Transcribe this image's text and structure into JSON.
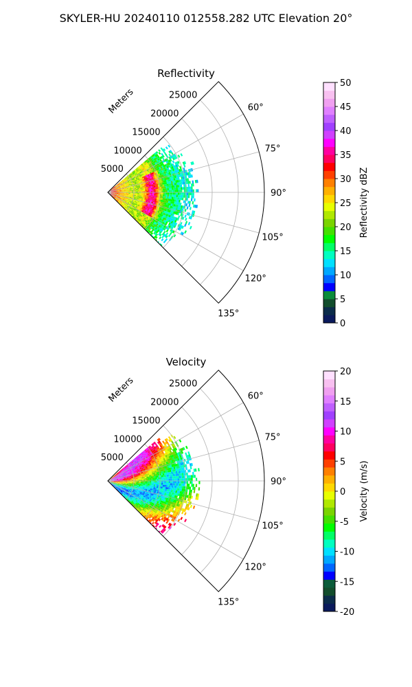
{
  "figure": {
    "suptitle": "SKYLER-HU  20240110  012558.282 UTC Elevation 20°"
  },
  "chart_data": [
    {
      "type": "heatmap",
      "projection": "polar-sector",
      "title": "Reflectivity",
      "range_label": "Meters",
      "range_ticks": [
        5000,
        10000,
        15000,
        20000,
        25000
      ],
      "range_max": 30000,
      "azimuth_range_deg": [
        45,
        135
      ],
      "azimuth_ticks_deg": [
        60,
        75,
        90,
        105,
        120,
        135
      ],
      "azimuth_tick_labels": [
        "60°",
        "75°",
        "90°",
        "105°",
        "120°",
        "135°"
      ],
      "grid": true,
      "colorbar": {
        "label": "Reflectivity dBZ",
        "min": 0,
        "max": 50,
        "ticks": [
          0,
          5,
          10,
          15,
          20,
          25,
          30,
          35,
          40,
          45,
          50
        ],
        "colors": [
          "#0a1a5c",
          "#0b2c4a",
          "#124d2c",
          "#0b8c3a",
          "#0000ff",
          "#0066ff",
          "#00a8ff",
          "#00e0ff",
          "#00ffc0",
          "#00ff66",
          "#00ff00",
          "#44e000",
          "#7ad400",
          "#b0e800",
          "#e8ff00",
          "#ffd800",
          "#ffb000",
          "#ff8000",
          "#ff4000",
          "#ff0000",
          "#ff0060",
          "#ff00a0",
          "#ff00ff",
          "#d040ff",
          "#a040ff",
          "#c060ff",
          "#e080ff",
          "#f0a0f0",
          "#f8c0f0",
          "#ffe0ff"
        ]
      }
    },
    {
      "type": "heatmap",
      "projection": "polar-sector",
      "title": "Velocity",
      "range_label": "Meters",
      "range_ticks": [
        5000,
        10000,
        15000,
        20000,
        25000
      ],
      "range_max": 30000,
      "azimuth_range_deg": [
        45,
        135
      ],
      "azimuth_ticks_deg": [
        60,
        75,
        90,
        105,
        120,
        135
      ],
      "azimuth_tick_labels": [
        "60°",
        "75°",
        "90°",
        "105°",
        "120°",
        "135°"
      ],
      "grid": true,
      "colorbar": {
        "label": "Velocity (m/s)",
        "min": -20,
        "max": 20,
        "ticks": [
          -20,
          -15,
          -10,
          -5,
          0,
          5,
          10,
          15,
          20
        ],
        "colors": [
          "#0a1a5c",
          "#0b2c4a",
          "#124d2c",
          "#0b5c3a",
          "#0000ff",
          "#0066ff",
          "#00a8ff",
          "#00e0ff",
          "#00ffc0",
          "#00ff66",
          "#00ff00",
          "#44e000",
          "#7ad400",
          "#b0e800",
          "#e8ff00",
          "#ffd800",
          "#ffb000",
          "#ff8000",
          "#ff4000",
          "#ff0000",
          "#ff0060",
          "#ff00a0",
          "#ff00ff",
          "#d040ff",
          "#a040ff",
          "#c060ff",
          "#e080ff",
          "#f0a0f0",
          "#f8c0f0",
          "#ffe0ff"
        ]
      }
    }
  ]
}
